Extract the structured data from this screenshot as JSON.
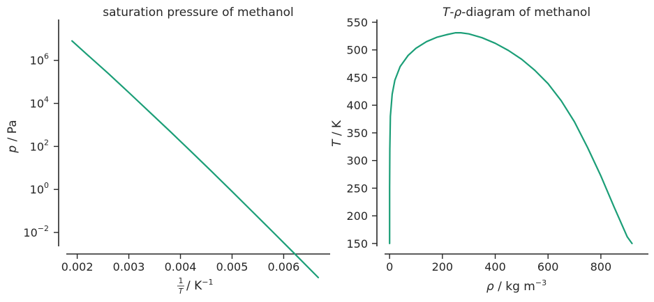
{
  "colors": {
    "series": "#1b9e77",
    "axis": "#262626"
  },
  "chart_data": [
    {
      "type": "line",
      "title": "saturation pressure of methanol",
      "xlabel": {
        "frac_num": "1",
        "frac_den": "T",
        "unit": " / K",
        "unit_sup": "−1"
      },
      "ylabel": {
        "symbol": "p",
        "unit": " / Pa"
      },
      "xscale": "linear",
      "yscale": "log",
      "xlim": [
        0.00164,
        0.0069
      ],
      "ylim_log10": [
        -3.0,
        7.9
      ],
      "xticks": [
        {
          "value": 0.002,
          "label": "0.002"
        },
        {
          "value": 0.003,
          "label": "0.003"
        },
        {
          "value": 0.004,
          "label": "0.004"
        },
        {
          "value": 0.005,
          "label": "0.005"
        },
        {
          "value": 0.006,
          "label": "0.006"
        }
      ],
      "yticks": [
        {
          "exp": -2,
          "label_base": "10",
          "label_exp": "−2"
        },
        {
          "exp": 0,
          "label_base": "10",
          "label_exp": "0"
        },
        {
          "exp": 2,
          "label_base": "10",
          "label_exp": "2"
        },
        {
          "exp": 4,
          "label_base": "10",
          "label_exp": "4"
        },
        {
          "exp": 6,
          "label_base": "10",
          "label_exp": "6"
        }
      ],
      "grid": false,
      "series": [
        {
          "x": [
            0.0019,
            0.0022,
            0.0026,
            0.003,
            0.0034,
            0.0038,
            0.0042,
            0.0046,
            0.005,
            0.0054,
            0.0058,
            0.0062,
            0.00667
          ],
          "y": [
            8000000.0,
            1800000.0,
            250000.0,
            32000.0,
            4000.0,
            500.0,
            60.0,
            7.0,
            0.8,
            0.09,
            0.01,
            0.0011,
            8e-05
          ]
        }
      ]
    },
    {
      "type": "line",
      "title_italic": "T",
      "title_mid": "-",
      "title_italic2": "ρ",
      "title_rest": "-diagram of methanol",
      "xlabel": {
        "symbol": "ρ",
        "unit": " / kg m",
        "unit_sup": "−3"
      },
      "ylabel": {
        "symbol": "T",
        "unit": " / K"
      },
      "xscale": "linear",
      "yscale": "linear",
      "xlim": [
        -48,
        980
      ],
      "ylim": [
        131,
        555
      ],
      "xticks": [
        {
          "value": 0,
          "label": "0"
        },
        {
          "value": 200,
          "label": "200"
        },
        {
          "value": 400,
          "label": "400"
        },
        {
          "value": 600,
          "label": "600"
        },
        {
          "value": 800,
          "label": "800"
        }
      ],
      "yticks": [
        {
          "value": 150,
          "label": "150"
        },
        {
          "value": 200,
          "label": "200"
        },
        {
          "value": 250,
          "label": "250"
        },
        {
          "value": 300,
          "label": "300"
        },
        {
          "value": 350,
          "label": "350"
        },
        {
          "value": 400,
          "label": "400"
        },
        {
          "value": 450,
          "label": "450"
        },
        {
          "value": 500,
          "label": "500"
        },
        {
          "value": 550,
          "label": "550"
        }
      ],
      "grid": false,
      "series": [
        {
          "x": [
            0,
            0.2,
            0.8,
            3,
            10,
            20,
            40,
            70,
            100,
            140,
            180,
            220,
            250,
            270,
            300,
            350,
            400,
            450,
            500,
            550,
            600,
            650,
            700,
            750,
            800,
            850,
            900,
            918
          ],
          "y": [
            150,
            250,
            320,
            380,
            420,
            445,
            470,
            490,
            503,
            515,
            523,
            528,
            531,
            531,
            529,
            522,
            512,
            499,
            483,
            463,
            439,
            408,
            370,
            323,
            272,
            216,
            162,
            150
          ]
        }
      ]
    }
  ]
}
